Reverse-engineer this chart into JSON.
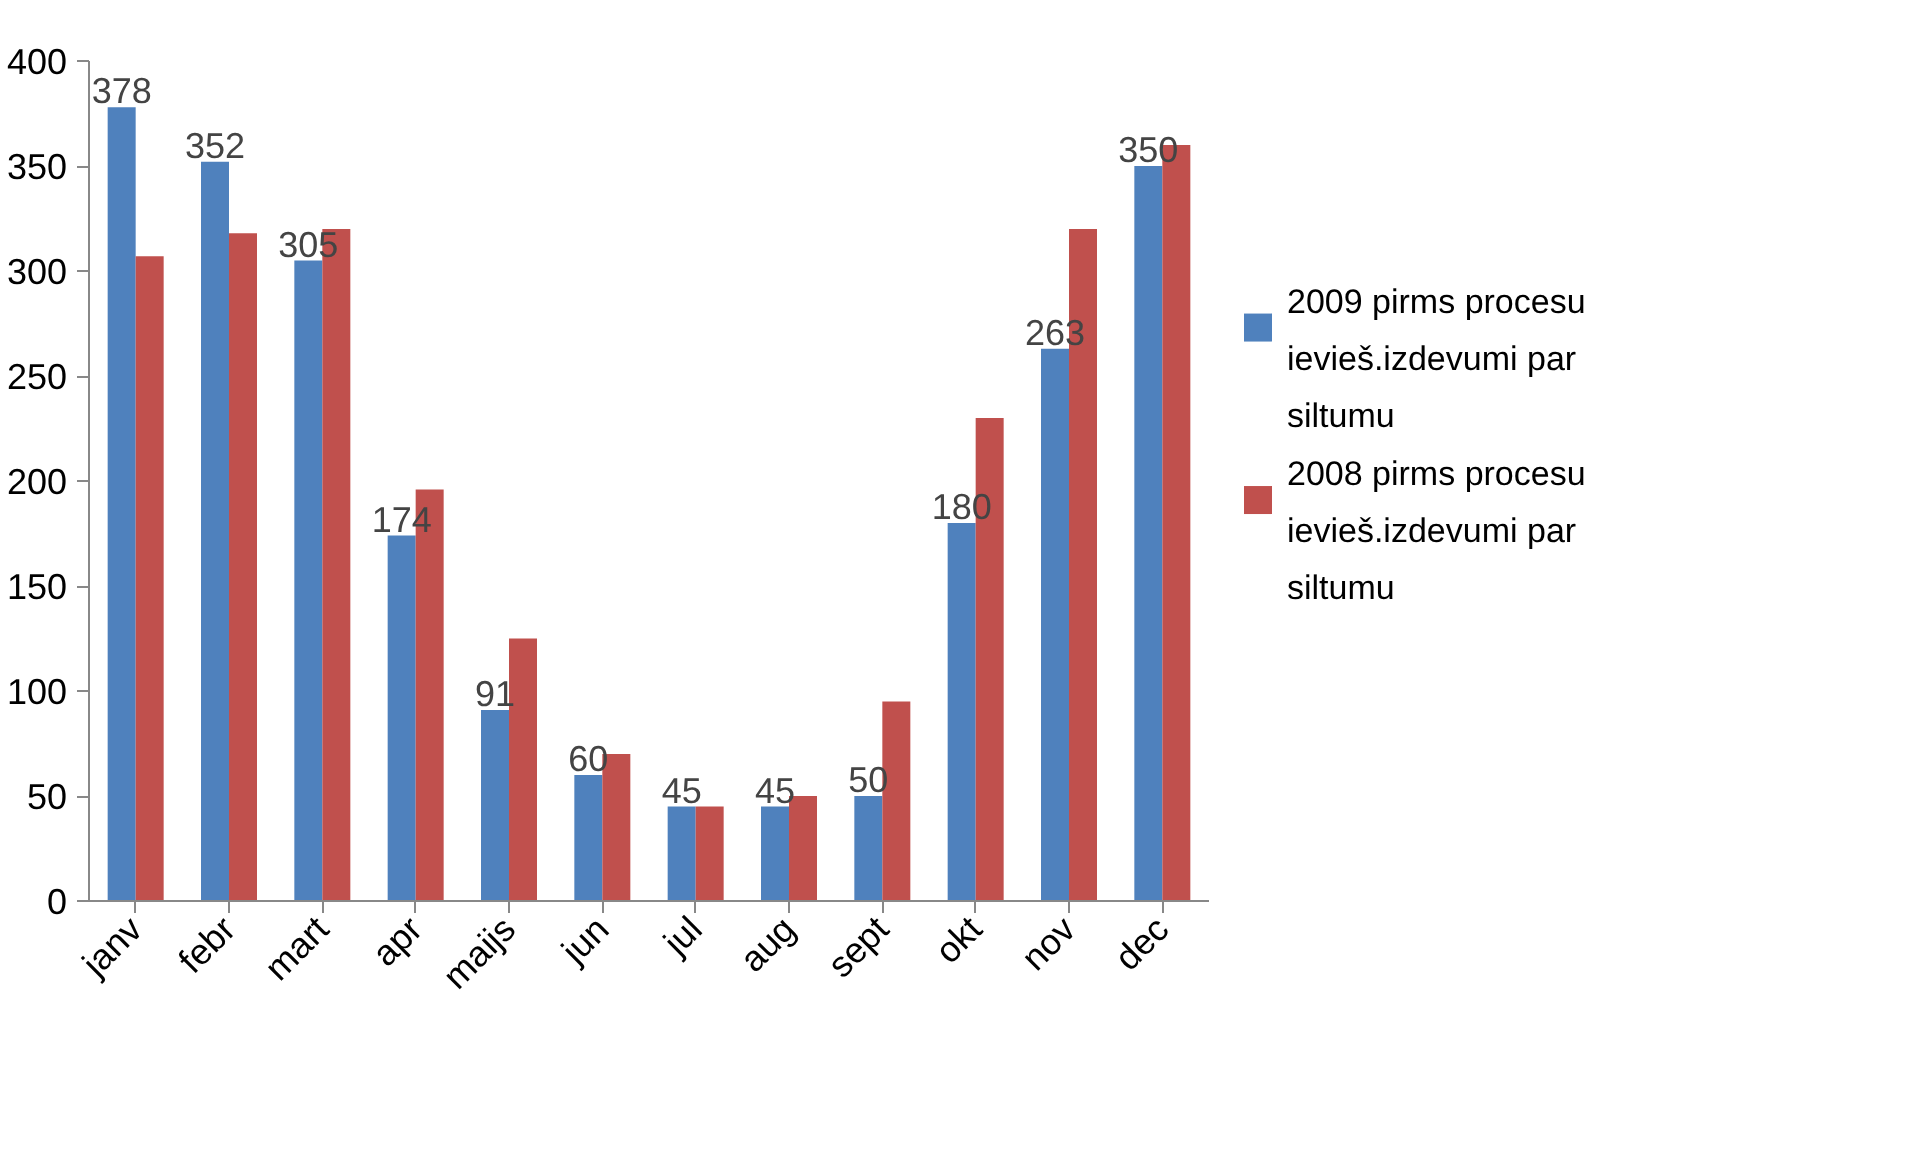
{
  "chart_data": {
    "type": "bar",
    "categories": [
      "janv",
      "febr",
      "mart",
      "apr",
      "maijs",
      "jun",
      "jul",
      "aug",
      "sept",
      "okt",
      "nov",
      "dec"
    ],
    "series": [
      {
        "name": "2009 pirms procesu ievieš.izdevumi par siltumu",
        "color": "#4f81bd",
        "values": [
          378,
          352,
          305,
          174,
          91,
          60,
          45,
          45,
          50,
          180,
          263,
          350
        ],
        "value_labels": [
          "378",
          "352",
          "305",
          "174",
          "91",
          "60",
          "45",
          "45",
          "50",
          "180",
          "263",
          "350"
        ]
      },
      {
        "name": "2008 pirms procesu ievieš.izdevumi par siltumu",
        "color": "#c0504d",
        "values": [
          307,
          318,
          320,
          196,
          125,
          70,
          45,
          50,
          95,
          230,
          320,
          360
        ]
      }
    ],
    "ylim": [
      0,
      400
    ],
    "yticks": [
      0,
      50,
      100,
      150,
      200,
      250,
      300,
      350,
      400
    ],
    "grid": false,
    "legend": "right"
  }
}
